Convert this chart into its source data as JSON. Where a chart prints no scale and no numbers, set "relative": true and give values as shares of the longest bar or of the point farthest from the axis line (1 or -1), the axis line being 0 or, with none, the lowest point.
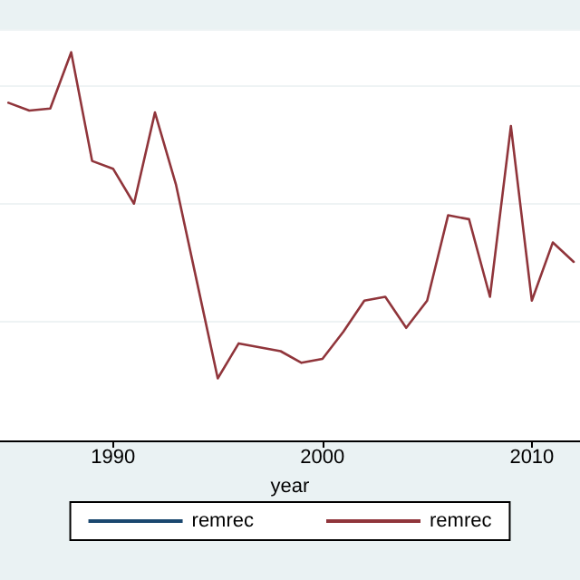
{
  "chart_data": {
    "type": "line",
    "relative": true,
    "xlabel": "year",
    "x": [
      1985,
      1986,
      1987,
      1988,
      1989,
      1990,
      1991,
      1992,
      1993,
      1994,
      1995,
      1996,
      1997,
      1998,
      1999,
      2000,
      2001,
      2002,
      2003,
      2004,
      2005,
      2006,
      2007,
      2008,
      2009,
      2010,
      2011,
      2012
    ],
    "xlim": [
      1984.6,
      2012.3
    ],
    "xticks": [
      1990,
      2000,
      2010
    ],
    "grid": "y",
    "legend": "bottom",
    "marker": "none",
    "line_style": "solid",
    "series": [
      {
        "name": "remrec",
        "color": "#1a476f",
        "values": [
          null,
          null,
          null,
          null,
          null,
          null,
          null,
          null,
          null,
          null,
          null,
          null,
          null,
          null,
          null,
          null,
          null,
          null,
          null,
          null,
          null,
          null,
          null,
          null,
          null,
          null,
          null,
          null
        ]
      },
      {
        "name": "remrec",
        "color": "#90353b",
        "values": [
          0.87,
          0.85,
          0.855,
          1,
          0.72,
          0.7,
          0.61,
          0.845,
          0.66,
          0.41,
          0.16,
          0.25,
          0.24,
          0.23,
          0.2,
          0.21,
          0.28,
          0.36,
          0.37,
          0.29,
          0.36,
          0.58,
          0.57,
          0.37,
          0.81,
          0.36,
          0.51,
          0.46
        ]
      }
    ]
  }
}
